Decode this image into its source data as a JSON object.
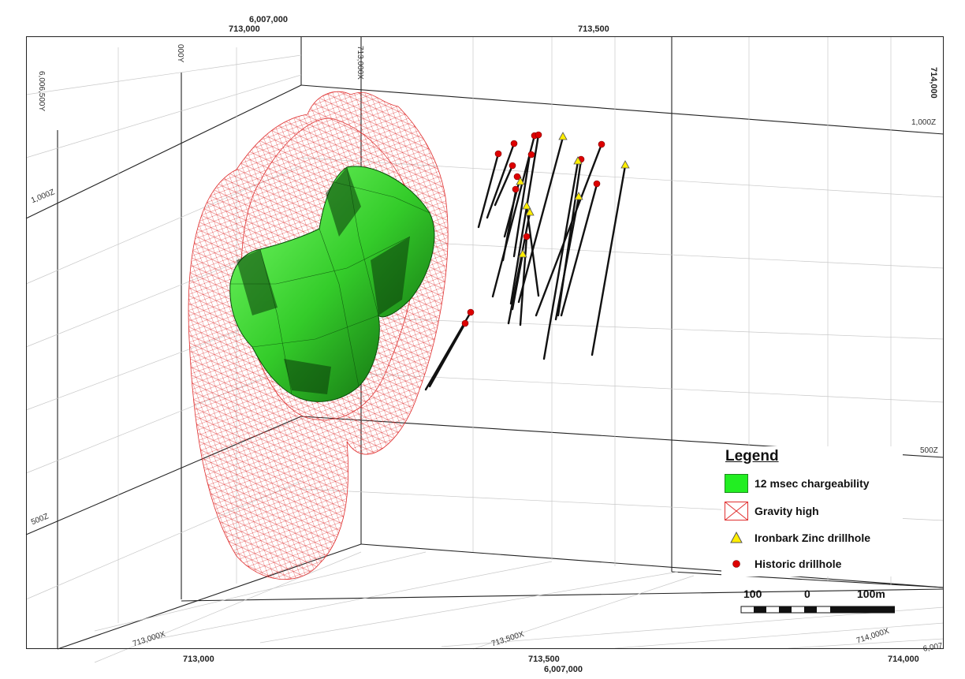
{
  "top_labels": {
    "northing_top": "6,007,000",
    "easting_a": "713,000",
    "easting_b": "713,500",
    "easting_right_rot": "714,000"
  },
  "bottom_labels": {
    "easting_a": "713,000",
    "easting_b": "713,500",
    "easting_c": "714,000",
    "northing_bottom": "6,007,000"
  },
  "grid_labels": {
    "y_top": "000Y",
    "y_left": "6,006,500Y",
    "x_top": "713,000X",
    "z_1000_left": "1,000Z",
    "z_500_left": "500Z",
    "z_1000_right": "1,000Z",
    "z_500_right": "500Z",
    "x_bottom_a": "713,000X",
    "x_bottom_b": "713,500X",
    "x_bottom_c": "714,000X",
    "y_bottom_right": "6,007"
  },
  "legend": {
    "title": "Legend",
    "items": [
      {
        "label": "12 msec chargeability",
        "symbol": "green-box",
        "color": "#22ee22"
      },
      {
        "label": "Gravity high",
        "symbol": "red-hatch",
        "color": "#e03030"
      },
      {
        "label": "Ironbark Zinc drillhole",
        "symbol": "yellow-triangle",
        "color": "#ffee00"
      },
      {
        "label": "Historic drillhole",
        "symbol": "red-dot",
        "color": "#dd0000"
      }
    ]
  },
  "scale": {
    "left": "100",
    "mid": "0",
    "right": "100m"
  }
}
